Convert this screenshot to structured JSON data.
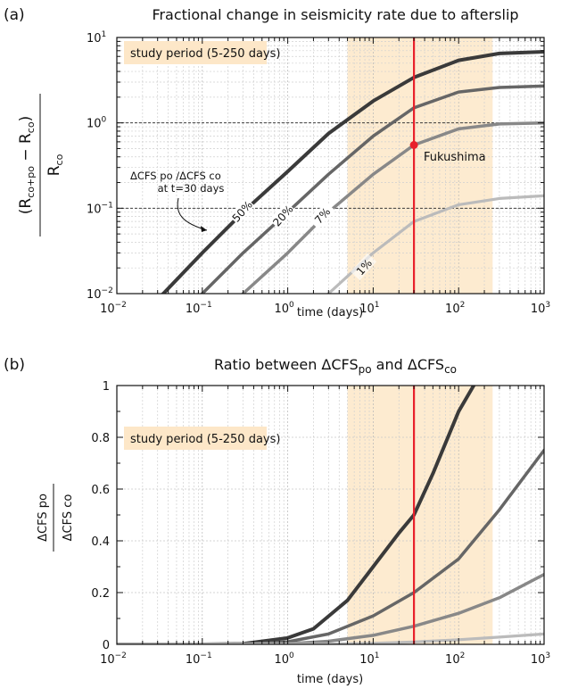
{
  "colors": {
    "study_shade": "#fdebd0",
    "marker_line": "#e8202a",
    "series": [
      "#3a3a3a",
      "#666666",
      "#888888",
      "#bbbbbb"
    ]
  },
  "panel_a": {
    "letter": "(a)",
    "title": "Fractional change in seismicity rate due to afterslip",
    "xlabel": "time (days)",
    "ylabel_num": "(R",
    "ylabel_num_sub1": "co+po",
    "ylabel_num_mid": " − R",
    "ylabel_num_sub2": "co",
    "ylabel_num_end": ")",
    "ylabel_den": "R",
    "ylabel_den_sub": "co",
    "study_label": "study period (5-250 days)",
    "annotation_line1": "ΔCFS po /ΔCFS co",
    "annotation_line2": "at t=30 days",
    "point_label": "Fukushima",
    "xticks": [
      "10",
      "10",
      "10",
      "10",
      "10",
      "10"
    ],
    "xtick_exps": [
      "−2",
      "−1",
      "0",
      "1",
      "2",
      "3"
    ],
    "yticks": [
      "10",
      "10",
      "10",
      "10"
    ],
    "ytick_exps": [
      "−2",
      "−1",
      "0",
      "1"
    ],
    "series_labels": [
      "50%",
      "20%",
      "7%",
      "1%"
    ]
  },
  "panel_b": {
    "letter": "(b)",
    "title_pre": "Ratio between ΔCFS",
    "title_sub1": "po",
    "title_mid": " and ΔCFS",
    "title_sub2": "co",
    "xlabel": "time (days)",
    "ylabel_num": "ΔCFS po",
    "ylabel_den": "ΔCFS co",
    "study_label": "study period (5-250 days)",
    "xticks": [
      "10",
      "10",
      "10",
      "10",
      "10",
      "10"
    ],
    "xtick_exps": [
      "−2",
      "−1",
      "0",
      "1",
      "2",
      "3"
    ],
    "yticks": [
      "0",
      "0.2",
      "0.4",
      "0.6",
      "0.8",
      "1"
    ]
  },
  "chart_data": [
    {
      "type": "line",
      "title": "Fractional change in seismicity rate due to afterslip",
      "xlabel": "time (days)",
      "ylabel": "(Rco+po − Rco) / Rco",
      "xscale": "log",
      "yscale": "log",
      "xlim": [
        0.01,
        1000
      ],
      "ylim": [
        0.01,
        10
      ],
      "study_period": [
        5,
        250
      ],
      "marker_x": 30,
      "reference_lines_y": [
        0.1,
        1
      ],
      "series": [
        {
          "name": "50%",
          "x": [
            0.01,
            0.035,
            0.1,
            0.3,
            1,
            3,
            10,
            30,
            100,
            300,
            1000
          ],
          "y": [
            0.003,
            0.01,
            0.03,
            0.09,
            0.27,
            0.75,
            1.8,
            3.4,
            5.4,
            6.5,
            6.8
          ]
        },
        {
          "name": "20%",
          "x": [
            0.01,
            0.1,
            0.3,
            1,
            3,
            10,
            30,
            100,
            300,
            1000
          ],
          "y": [
            0.001,
            0.01,
            0.03,
            0.09,
            0.25,
            0.7,
            1.5,
            2.3,
            2.6,
            2.7
          ]
        },
        {
          "name": "7%",
          "x": [
            0.03,
            0.3,
            1,
            3,
            10,
            30,
            100,
            300,
            1000
          ],
          "y": [
            0.001,
            0.01,
            0.03,
            0.09,
            0.25,
            0.55,
            0.85,
            0.97,
            1.0
          ]
        },
        {
          "name": "1%",
          "x": [
            0.3,
            3,
            10,
            30,
            100,
            300,
            1000
          ],
          "y": [
            0.001,
            0.01,
            0.03,
            0.07,
            0.11,
            0.13,
            0.14
          ]
        }
      ],
      "points": [
        {
          "label": "Fukushima",
          "x": 30,
          "y": 0.55
        }
      ]
    },
    {
      "type": "line",
      "title": "Ratio between ΔCFSpo and ΔCFSco",
      "xlabel": "time (days)",
      "ylabel": "ΔCFS po / ΔCFS co",
      "xscale": "log",
      "yscale": "linear",
      "xlim": [
        0.01,
        1000
      ],
      "ylim": [
        0,
        1
      ],
      "study_period": [
        5,
        250
      ],
      "marker_x": 30,
      "series": [
        {
          "x": [
            0.01,
            0.1,
            0.3,
            1,
            2,
            5,
            10,
            20,
            30,
            50,
            100,
            150
          ],
          "y": [
            0,
            0,
            0.002,
            0.025,
            0.06,
            0.17,
            0.3,
            0.43,
            0.5,
            0.66,
            0.9,
            1.0
          ]
        },
        {
          "x": [
            0.01,
            0.3,
            1,
            3,
            10,
            30,
            100,
            300,
            1000
          ],
          "y": [
            0,
            0.001,
            0.01,
            0.04,
            0.11,
            0.2,
            0.33,
            0.52,
            0.75
          ]
        },
        {
          "x": [
            0.01,
            1,
            3,
            10,
            30,
            100,
            300,
            1000
          ],
          "y": [
            0,
            0.002,
            0.012,
            0.035,
            0.07,
            0.12,
            0.18,
            0.27
          ]
        },
        {
          "x": [
            0.01,
            3,
            10,
            30,
            100,
            300,
            1000
          ],
          "y": [
            0,
            0.001,
            0.004,
            0.009,
            0.018,
            0.028,
            0.04
          ]
        }
      ]
    }
  ]
}
